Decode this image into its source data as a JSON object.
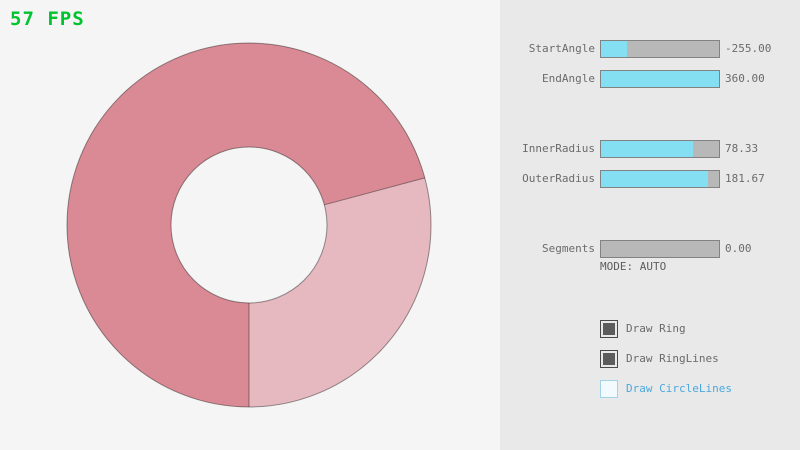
{
  "fps": "57 FPS",
  "colors": {
    "background_left": "#f5f5f5",
    "background_panel": "#e9e9e9",
    "ring_dark": "#d98a94",
    "ring_light": "#e6b8bf",
    "ring_outline": "rgba(0,0,0,0.4)",
    "slider_fill": "#85dff2",
    "slider_track": "#b8b8b8",
    "fps_green": "#00c42e",
    "accent_blue": "#49a9dd"
  },
  "panel": {
    "sliders": [
      {
        "label": "StartAngle",
        "value": "-255.00",
        "fill_pct": 22
      },
      {
        "label": "EndAngle",
        "value": "360.00",
        "fill_pct": 100
      },
      {
        "label": "InnerRadius",
        "value": "78.33",
        "fill_pct": 78
      },
      {
        "label": "OuterRadius",
        "value": "181.67",
        "fill_pct": 91
      },
      {
        "label": "Segments",
        "value": "0.00",
        "fill_pct": 0
      }
    ],
    "mode_text": "MODE: AUTO",
    "checkboxes": [
      {
        "label": "Draw Ring",
        "checked": true
      },
      {
        "label": "Draw RingLines",
        "checked": true
      },
      {
        "label": "Draw CircleLines",
        "checked": false
      }
    ]
  }
}
